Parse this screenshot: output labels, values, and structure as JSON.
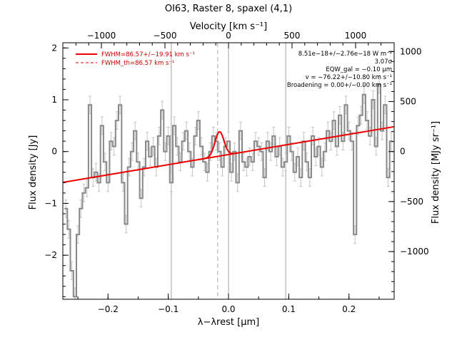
{
  "chart_data": {
    "type": "line",
    "title": "OI63, Raster 8, spaxel (4,1)",
    "xlabel": "λ−λrest [μm]",
    "ylabel": "Flux density [Jy]",
    "top_axis_label": "Velocity [km s⁻¹]",
    "right_axis_label": "Flux density [MJy sr⁻¹]",
    "xlim": [
      -0.275,
      0.275
    ],
    "ylim": [
      -2.85,
      2.1
    ],
    "x_ticks": [
      -0.2,
      -0.1,
      0.0,
      0.1,
      0.2
    ],
    "x_tick_labels": [
      "−0.2",
      "−0.1",
      "0.0",
      "0.1",
      "0.2"
    ],
    "y_ticks": [
      -2,
      -1,
      0,
      1,
      2
    ],
    "y_tick_labels": [
      "−2",
      "−1",
      "0",
      "1",
      "2"
    ],
    "top_ticks": [
      -1000,
      -500,
      0,
      500,
      1000
    ],
    "top_tick_labels": [
      "−1000",
      "−500",
      "0",
      "500",
      "1000"
    ],
    "top_ticks_kms_per_um": 6.59,
    "right_ticks": [
      -1000,
      -500,
      0,
      500,
      1000
    ],
    "right_tick_labels": [
      "−1000",
      "−500",
      "0",
      "500",
      "1000"
    ],
    "right_scale_per_jy": 518,
    "vertical_lines_x": [
      -0.095,
      0.0,
      0.095
    ],
    "dashed_line_x": -0.018,
    "series": [
      {
        "name": "spectrum",
        "color": "#888888",
        "style": "step",
        "x": [
          -0.27,
          -0.265,
          -0.26,
          -0.255,
          -0.25,
          -0.245,
          -0.24,
          -0.235,
          -0.23,
          -0.225,
          -0.22,
          -0.215,
          -0.21,
          -0.205,
          -0.2,
          -0.195,
          -0.19,
          -0.185,
          -0.18,
          -0.175,
          -0.17,
          -0.165,
          -0.16,
          -0.155,
          -0.15,
          -0.145,
          -0.14,
          -0.135,
          -0.13,
          -0.125,
          -0.12,
          -0.115,
          -0.11,
          -0.105,
          -0.1,
          -0.095,
          -0.09,
          -0.085,
          -0.08,
          -0.075,
          -0.07,
          -0.065,
          -0.06,
          -0.055,
          -0.05,
          -0.045,
          -0.04,
          -0.035,
          -0.03,
          -0.025,
          -0.02,
          -0.015,
          -0.01,
          -0.005,
          0.0,
          0.005,
          0.01,
          0.015,
          0.02,
          0.025,
          0.03,
          0.035,
          0.04,
          0.045,
          0.05,
          0.055,
          0.06,
          0.065,
          0.07,
          0.075,
          0.08,
          0.085,
          0.09,
          0.095,
          0.1,
          0.105,
          0.11,
          0.115,
          0.12,
          0.125,
          0.13,
          0.135,
          0.14,
          0.145,
          0.15,
          0.155,
          0.16,
          0.165,
          0.17,
          0.175,
          0.18,
          0.185,
          0.19,
          0.195,
          0.2,
          0.205,
          0.21,
          0.215,
          0.22,
          0.225,
          0.23,
          0.235,
          0.24,
          0.245,
          0.25,
          0.255,
          0.26,
          0.265,
          0.27
        ],
        "y": [
          -1.1,
          -1.5,
          -2.3,
          -2.8,
          -1.6,
          -1.1,
          -0.8,
          -0.7,
          0.9,
          -0.5,
          -0.4,
          -0.6,
          0.5,
          -0.2,
          -0.6,
          0.2,
          0.1,
          0.6,
          0.9,
          -0.6,
          -1.4,
          -0.3,
          0.0,
          0.4,
          -0.2,
          -0.9,
          -0.3,
          0.2,
          -0.1,
          0.1,
          -0.3,
          0.3,
          0.8,
          0.0,
          0.3,
          -0.6,
          0.5,
          0.1,
          -0.2,
          0.2,
          0.4,
          0.0,
          -0.3,
          0.3,
          0.6,
          0.1,
          -0.2,
          -0.4,
          0.0,
          0.3,
          0.2,
          0.0,
          -0.3,
          0.1,
          0.2,
          -0.4,
          0.0,
          -0.6,
          0.4,
          -0.2,
          -0.3,
          -0.1,
          -0.2,
          0.2,
          0.1,
          0.0,
          -0.5,
          0.2,
          0.0,
          0.3,
          -0.1,
          0.1,
          -0.3,
          -0.2,
          0.3,
          0.0,
          -0.4,
          -0.1,
          -0.5,
          0.2,
          -0.2,
          -0.5,
          0.3,
          -0.1,
          0.1,
          -0.3,
          0.0,
          0.4,
          0.2,
          0.6,
          0.1,
          0.7,
          0.2,
          0.9,
          0.4,
          0.2,
          -1.6,
          0.5,
          0.7,
          1.1,
          0.6,
          0.3,
          1.0,
          0.1,
          1.3,
          0.4,
          0.9,
          -0.5,
          0.2
        ]
      },
      {
        "name": "FWHM=86.57+/−19.91 km s⁻¹",
        "color": "#ee0000",
        "style": "line",
        "continuum": {
          "at_xmin": -0.595,
          "at_xmax": 0.48
        },
        "gaussian": {
          "center": -0.015,
          "amplitude": 0.47,
          "sigma": 0.0074
        }
      }
    ],
    "legend": [
      {
        "label": "FWHM=86.57+/−19.91 km s⁻¹",
        "style": "solid",
        "color": "#ee0000"
      },
      {
        "label": "FWHM_th=86.57 km s⁻¹",
        "style": "dashed",
        "color": "#ee0000"
      }
    ],
    "legend_placement": "top-left",
    "annotations": [
      "8.51e−18+/−2.76e−18 W m⁻²",
      "3.07σ",
      "EQW_gal = −0.10 μm",
      "v = −76.22+/−10.80 km s⁻¹",
      "Broadening = 0.00+/−0.00 km s⁻¹"
    ],
    "annotation_placement": "top-right",
    "grid": false
  }
}
